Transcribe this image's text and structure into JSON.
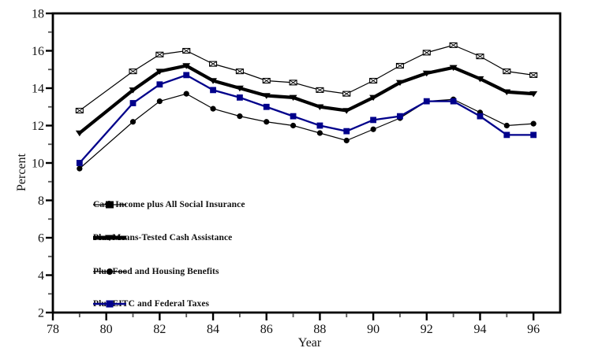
{
  "figure": {
    "background": "#ffffff"
  },
  "colors": {
    "black": "#000000",
    "navy": "#00008B",
    "minor_tick": "#555555"
  },
  "chart_data": {
    "type": "line",
    "title": "",
    "xlabel": "Year",
    "ylabel": "Percent",
    "xlim": [
      78,
      97
    ],
    "ylim": [
      2,
      18
    ],
    "grid": false,
    "legend_position": "inside-lower-left",
    "x_major_ticks": [
      78,
      80,
      82,
      84,
      86,
      88,
      90,
      92,
      94,
      96
    ],
    "x_major_tick_labels": [
      "78",
      "80",
      "82",
      "84",
      "86",
      "88",
      "90",
      "92",
      "94",
      "96"
    ],
    "x_minor_ticks": [
      79,
      81,
      83,
      85,
      87,
      89,
      91,
      93,
      95
    ],
    "y_major_ticks": [
      2,
      4,
      6,
      8,
      10,
      12,
      14,
      16,
      18
    ],
    "y_major_tick_labels": [
      "2",
      "4",
      "6",
      "8",
      "10",
      "12",
      "14",
      "16",
      "18"
    ],
    "y_minor_ticks": [
      3,
      5,
      7,
      9,
      11,
      13,
      15,
      17
    ],
    "x": [
      1979,
      1981,
      1982,
      1983,
      1984,
      1985,
      1986,
      1987,
      1988,
      1989,
      1990,
      1991,
      1992,
      1993,
      1994,
      1995,
      1996
    ],
    "series": [
      {
        "name": "Cash Income plus All Social Insurance",
        "color": "#000000",
        "marker": "crossed-rect",
        "line": "thin",
        "values": [
          12.8,
          14.9,
          15.8,
          16.0,
          15.3,
          14.9,
          14.4,
          14.3,
          13.9,
          13.7,
          14.4,
          15.2,
          15.9,
          16.3,
          15.7,
          14.9,
          14.7
        ]
      },
      {
        "name": "Plus Means-Tested Cash Assistance",
        "color": "#000000",
        "marker": "triangle-down",
        "line": "thick",
        "values": [
          11.6,
          13.9,
          14.9,
          15.2,
          14.4,
          14.0,
          13.6,
          13.5,
          13.0,
          12.8,
          13.5,
          14.3,
          14.8,
          15.1,
          14.5,
          13.8,
          13.7
        ]
      },
      {
        "name": "Plus Food and Housing Benefits",
        "color": "#000000",
        "marker": "circle",
        "line": "thin",
        "values": [
          9.7,
          12.2,
          13.3,
          13.7,
          12.9,
          12.5,
          12.2,
          12.0,
          11.6,
          11.2,
          11.8,
          12.4,
          13.3,
          13.4,
          12.7,
          12.0,
          12.1
        ]
      },
      {
        "name": "Plus EITC and Federal Taxes",
        "color": "#00008B",
        "marker": "square",
        "line": "medium",
        "values": [
          10.0,
          13.2,
          14.2,
          14.7,
          13.9,
          13.5,
          13.0,
          12.5,
          12.0,
          11.7,
          12.3,
          12.5,
          13.3,
          13.3,
          12.5,
          11.5,
          11.5
        ]
      }
    ]
  }
}
